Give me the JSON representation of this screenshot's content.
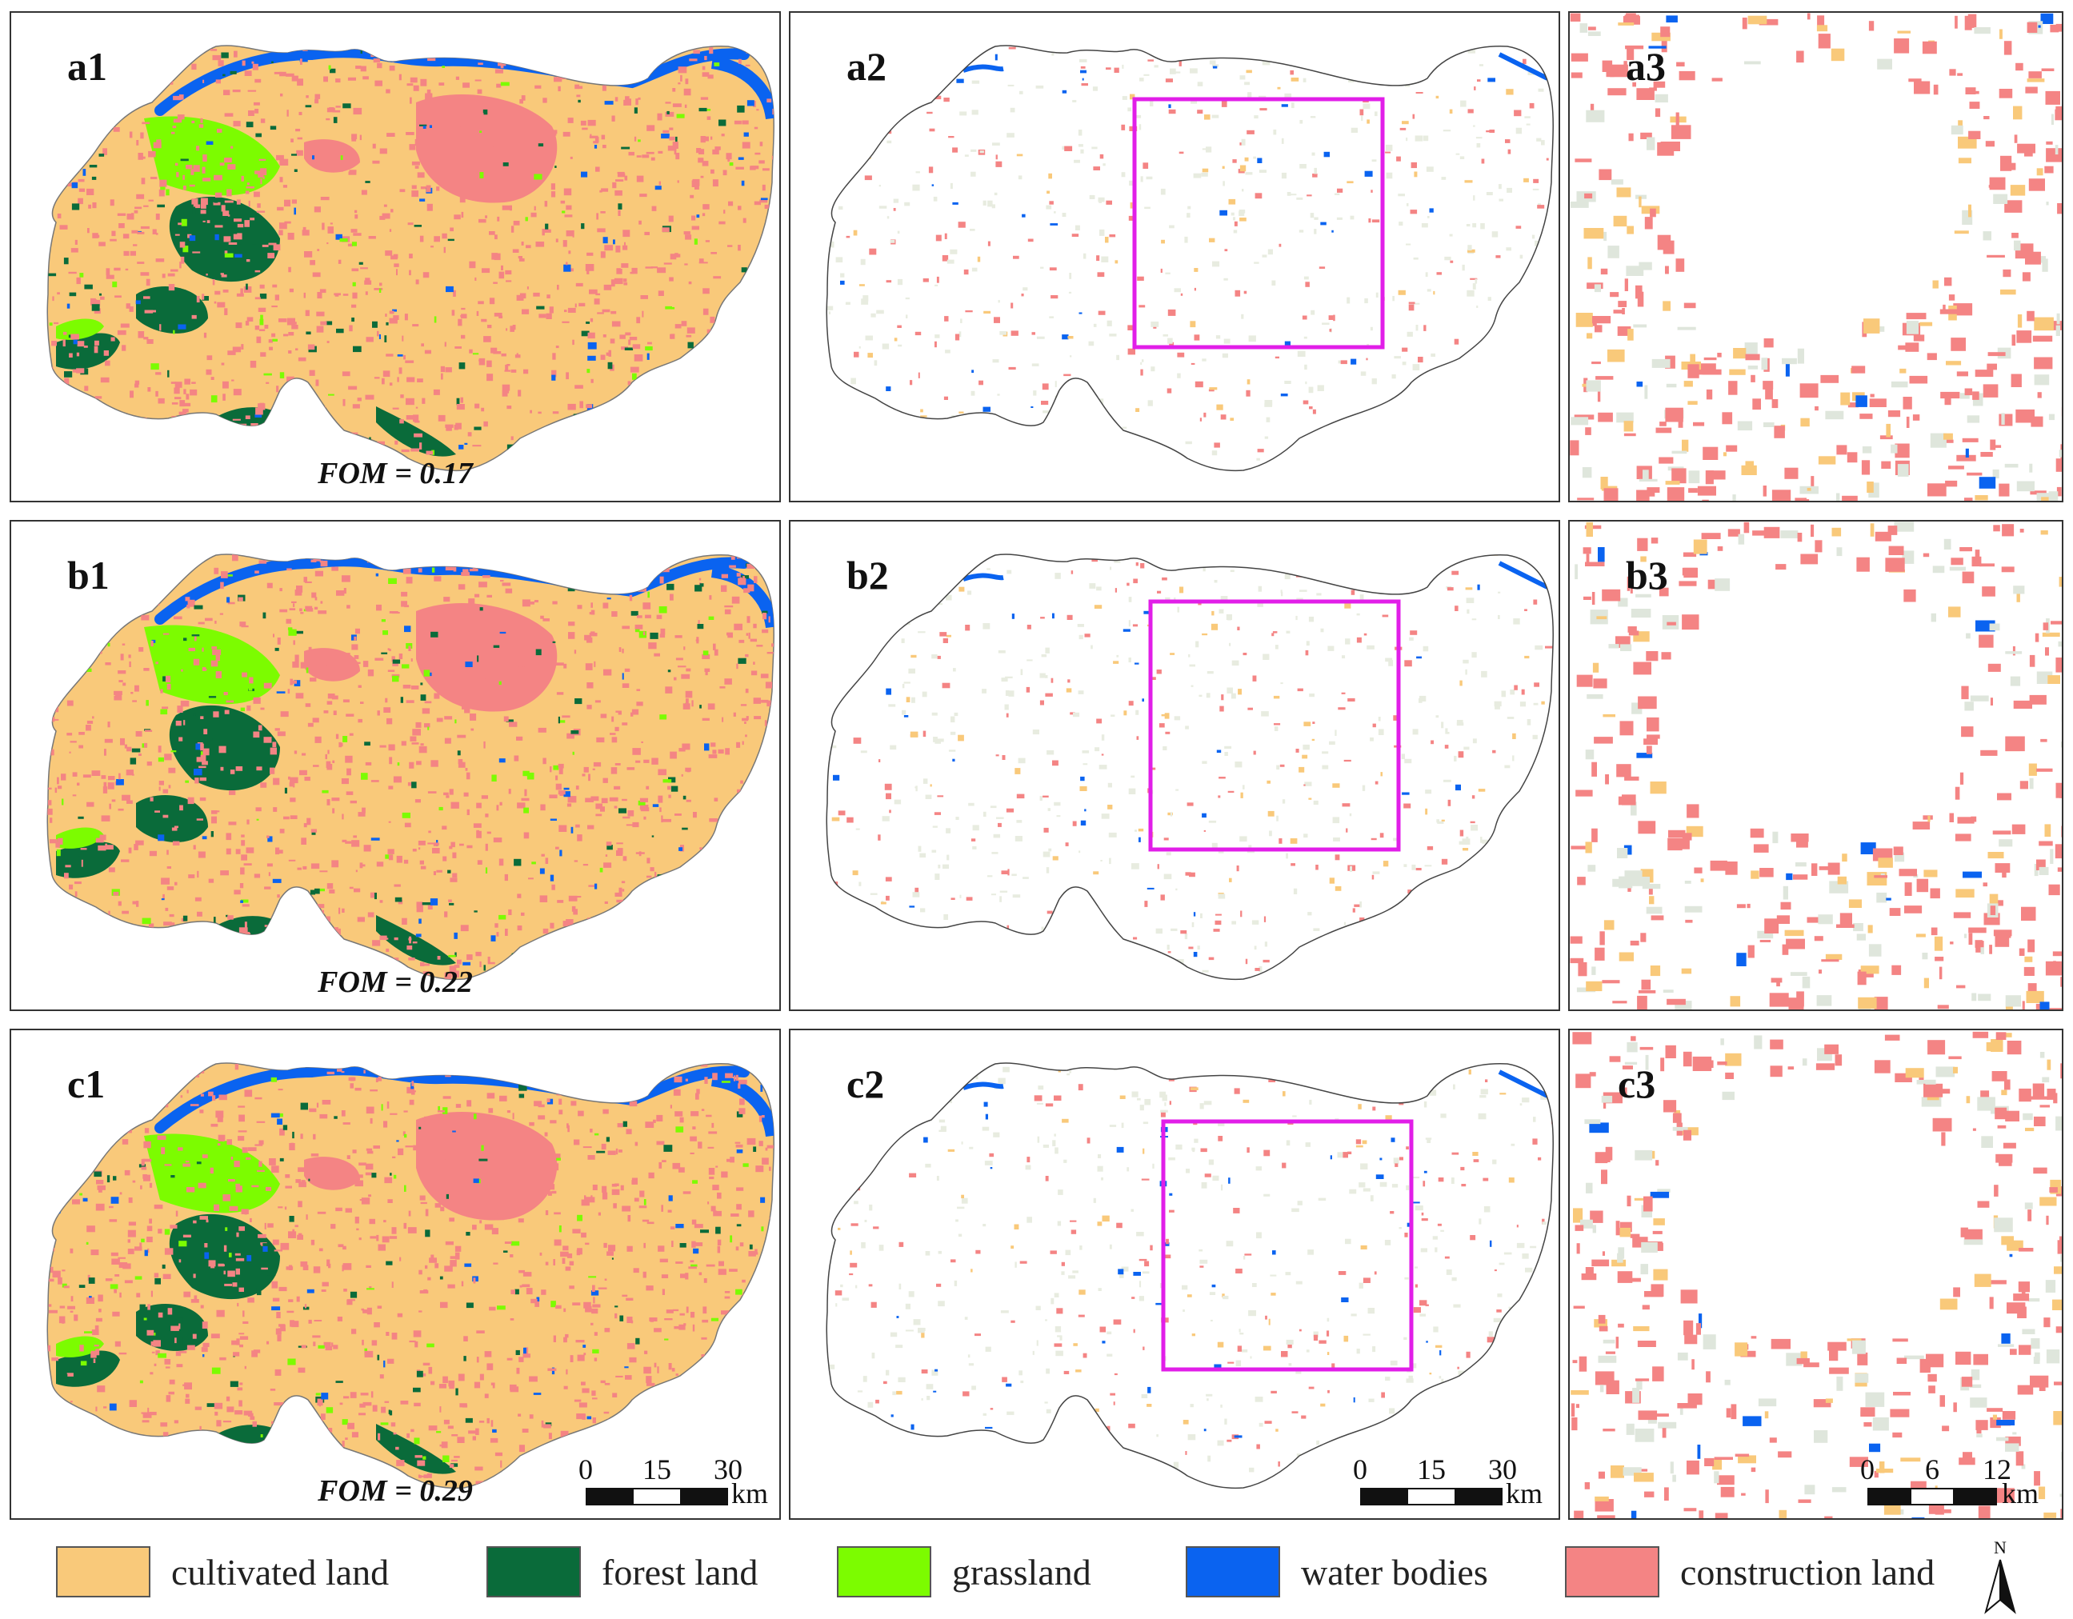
{
  "panels": [
    {
      "id": "a1",
      "label": "a1",
      "fom": "FOM = 0.17"
    },
    {
      "id": "a2",
      "label": "a2"
    },
    {
      "id": "a3",
      "label": "a3"
    },
    {
      "id": "b1",
      "label": "b1",
      "fom": "FOM = 0.22"
    },
    {
      "id": "b2",
      "label": "b2"
    },
    {
      "id": "b3",
      "label": "b3"
    },
    {
      "id": "c1",
      "label": "c1",
      "fom": "FOM = 0.29"
    },
    {
      "id": "c2",
      "label": "c2"
    },
    {
      "id": "c3",
      "label": "c3"
    }
  ],
  "scalebars": {
    "c1": {
      "ticks": [
        "0",
        "15",
        "30"
      ],
      "unit": "km"
    },
    "c2": {
      "ticks": [
        "0",
        "15",
        "30"
      ],
      "unit": "km"
    },
    "c3": {
      "ticks": [
        "0",
        "6",
        "12"
      ],
      "unit": "km"
    }
  },
  "legend": [
    {
      "label": "cultivated land",
      "color": "#f9c97a"
    },
    {
      "label": "forest land",
      "color": "#0a6b3a"
    },
    {
      "label": "grassland",
      "color": "#7cfc00"
    },
    {
      "label": "water bodies",
      "color": "#0a63f0"
    },
    {
      "label": "construction land",
      "color": "#f48484"
    }
  ],
  "north_label": "N",
  "colors": {
    "highlight_box": "#e11ee8",
    "boundary": "#444444"
  }
}
